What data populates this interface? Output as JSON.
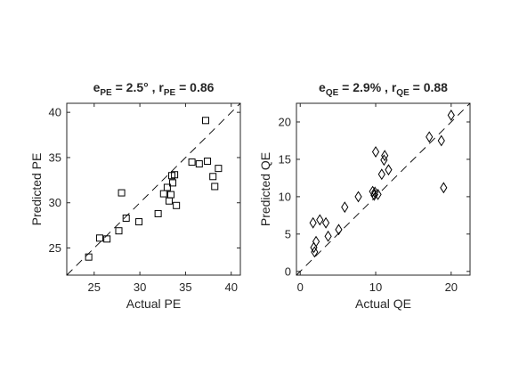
{
  "chart_data": [
    {
      "type": "scatter",
      "marker": "square",
      "title_parts": {
        "e": "e",
        "e_sub": "PE",
        "e_val": " = 2.5° , ",
        "r": "r",
        "r_sub": "PE",
        "r_val": " = 0.86"
      },
      "xlabel": "Actual PE",
      "ylabel": "Predicted PE",
      "xlim": [
        22,
        41
      ],
      "ylim": [
        22,
        41
      ],
      "xticks": [
        25,
        30,
        35,
        40
      ],
      "yticks": [
        25,
        30,
        35,
        40
      ],
      "grid": false,
      "identity_line": true,
      "x": [
        24.4,
        25.6,
        26.4,
        27.7,
        28.0,
        28.5,
        29.9,
        32.0,
        32.6,
        33.0,
        33.2,
        33.4,
        33.5,
        33.6,
        33.8,
        34.0,
        35.7,
        36.5,
        37.4,
        38.0,
        38.2,
        38.6,
        37.2
      ],
      "y": [
        24.0,
        26.1,
        26.0,
        26.9,
        31.1,
        28.3,
        27.9,
        28.8,
        31.0,
        31.7,
        30.2,
        30.9,
        33.0,
        32.2,
        33.1,
        29.7,
        34.5,
        34.3,
        34.6,
        32.9,
        31.8,
        33.8,
        39.1
      ]
    },
    {
      "type": "scatter",
      "marker": "diamond",
      "title_parts": {
        "e": "e",
        "e_sub": "QE",
        "e_val": " = 2.9% , ",
        "r": "r",
        "r_sub": "QE",
        "r_val": " = 0.88"
      },
      "xlabel": "Actual QE",
      "ylabel": "Predicted QE",
      "xlim": [
        -0.5,
        22.5
      ],
      "ylim": [
        -0.5,
        22.5
      ],
      "xticks": [
        0,
        10,
        20
      ],
      "yticks": [
        0,
        5,
        10,
        15,
        20
      ],
      "grid": false,
      "identity_line": true,
      "x": [
        1.8,
        1.9,
        2.1,
        2.6,
        3.4,
        3.7,
        5.1,
        5.9,
        7.7,
        9.6,
        9.8,
        10.0,
        10.3,
        10.8,
        11.1,
        11.7,
        9.9,
        11.2,
        17.1,
        18.7,
        20.0,
        19.0,
        1.7
      ],
      "y": [
        3.2,
        2.6,
        4.0,
        6.9,
        6.5,
        4.7,
        5.6,
        8.6,
        10.0,
        10.7,
        10.2,
        16.0,
        10.3,
        13.0,
        14.9,
        13.6,
        10.6,
        15.5,
        18.0,
        17.5,
        20.9,
        11.2,
        6.5
      ]
    }
  ]
}
